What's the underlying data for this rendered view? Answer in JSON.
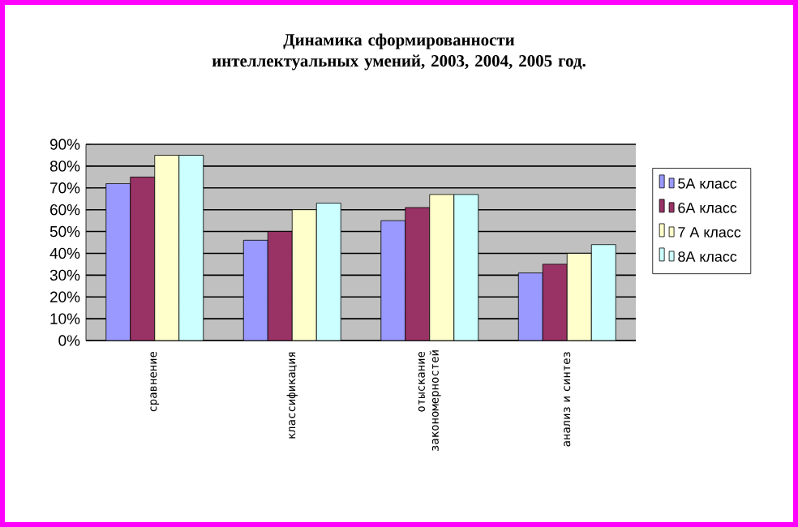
{
  "chart_data": {
    "type": "bar",
    "title": "Динамика сформированности интеллектуальных умений, 2003, 2004, 2005 год.",
    "categories": [
      "сравнение",
      "классификация",
      "отыскание закономерностей",
      "анализ и синтез"
    ],
    "series": [
      {
        "name": "5А класс",
        "color": "#9999ff",
        "values": [
          72,
          46,
          55,
          31
        ]
      },
      {
        "name": "6А класс",
        "color": "#993366",
        "values": [
          75,
          50,
          61,
          35
        ]
      },
      {
        "name": "7 А класс",
        "color": "#ffffcc",
        "values": [
          85,
          60,
          67,
          40
        ]
      },
      {
        "name": "8А класс",
        "color": "#ccffff",
        "values": [
          85,
          63,
          67,
          44
        ]
      }
    ],
    "ylim": [
      0,
      90
    ],
    "yticks": [
      {
        "value": 0,
        "label": "0%"
      },
      {
        "value": 10,
        "label": "10%"
      },
      {
        "value": 20,
        "label": "20%"
      },
      {
        "value": 30,
        "label": "30%"
      },
      {
        "value": 40,
        "label": "40%"
      },
      {
        "value": 50,
        "label": "50%"
      },
      {
        "value": 60,
        "label": "60%"
      },
      {
        "value": 70,
        "label": "70%"
      },
      {
        "value": 80,
        "label": "80%"
      },
      {
        "value": 90,
        "label": "90%"
      }
    ],
    "grid": "y",
    "legend": "right"
  }
}
